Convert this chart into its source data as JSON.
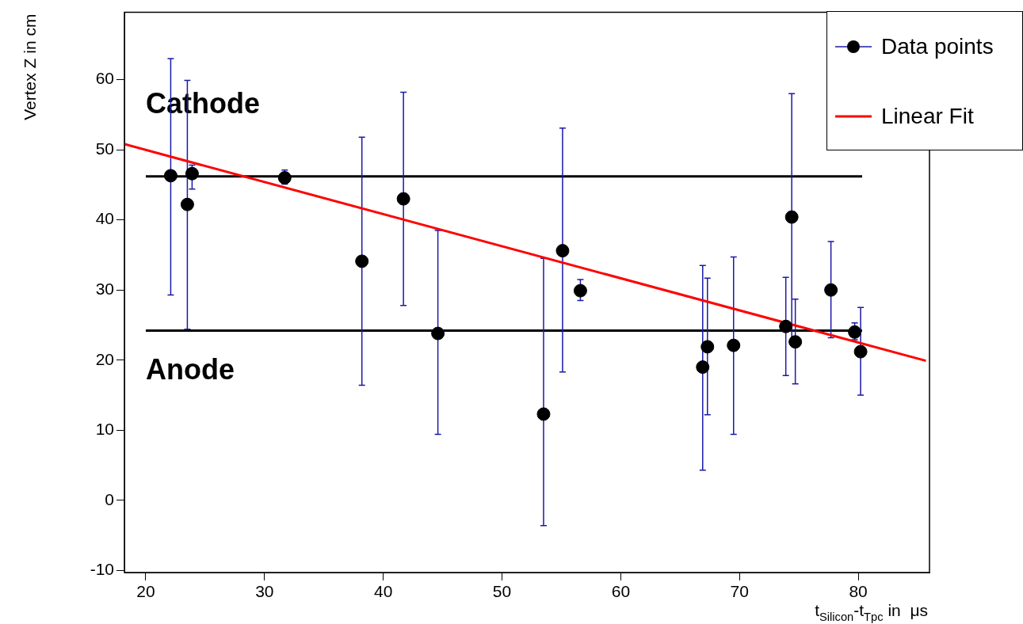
{
  "chart_data": {
    "type": "scatter",
    "xlabel": "t$_{Silicon}$-t$_{Tpc}$ in  μs",
    "ylabel": "Vertex Z in cm",
    "xlim": [
      18.2,
      86
    ],
    "xticks": [
      20,
      30,
      40,
      50,
      60,
      70,
      80
    ],
    "ylim": [
      -10.3,
      69.6
    ],
    "yticks": [
      -10,
      0,
      10,
      20,
      30,
      40,
      50,
      60
    ],
    "grid": false,
    "legend": "top right",
    "series": [
      {
        "name": "Data points",
        "marker": "circle",
        "color": "#000000",
        "x": [
          22.1,
          23.5,
          23.9,
          31.7,
          38.2,
          41.7,
          44.6,
          53.5,
          55.1,
          56.6,
          66.9,
          67.3,
          69.5,
          73.9,
          74.4,
          74.7,
          77.7,
          79.7,
          80.2
        ],
        "values": [
          46.3,
          42.2,
          46.6,
          46.0,
          34.1,
          43.0,
          23.8,
          12.3,
          35.6,
          29.9,
          19.0,
          21.9,
          22.1,
          24.8,
          40.4,
          22.6,
          30.0,
          24.0,
          21.2
        ],
        "errors": [
          [
            29.3,
            63.0
          ],
          [
            24.4,
            59.9
          ],
          [
            44.4,
            47.8
          ],
          [
            45.1,
            47.1
          ],
          [
            16.4,
            51.8
          ],
          [
            27.8,
            58.2
          ],
          [
            9.4,
            38.5
          ],
          [
            -3.6,
            34.5
          ],
          [
            18.3,
            53.1
          ],
          [
            28.5,
            31.5
          ],
          [
            4.3,
            33.5
          ],
          [
            12.2,
            31.7
          ],
          [
            9.4,
            34.7
          ],
          [
            17.8,
            31.8
          ],
          [
            22.6,
            58.0
          ],
          [
            16.6,
            28.7
          ],
          [
            23.2,
            36.9
          ],
          [
            22.9,
            25.3
          ],
          [
            15.0,
            27.5
          ]
        ]
      },
      {
        "name": "Linear Fit",
        "type": "line",
        "color": "#ff0000",
        "x": [
          18.2,
          85.7
        ],
        "values": [
          50.8,
          19.9
        ]
      }
    ],
    "ref_lines": [
      {
        "axis": "y",
        "value": 46.2,
        "color": "#000000",
        "label": "Cathode"
      },
      {
        "axis": "y",
        "value": 24.2,
        "color": "#000000",
        "label": "Anode"
      }
    ]
  }
}
